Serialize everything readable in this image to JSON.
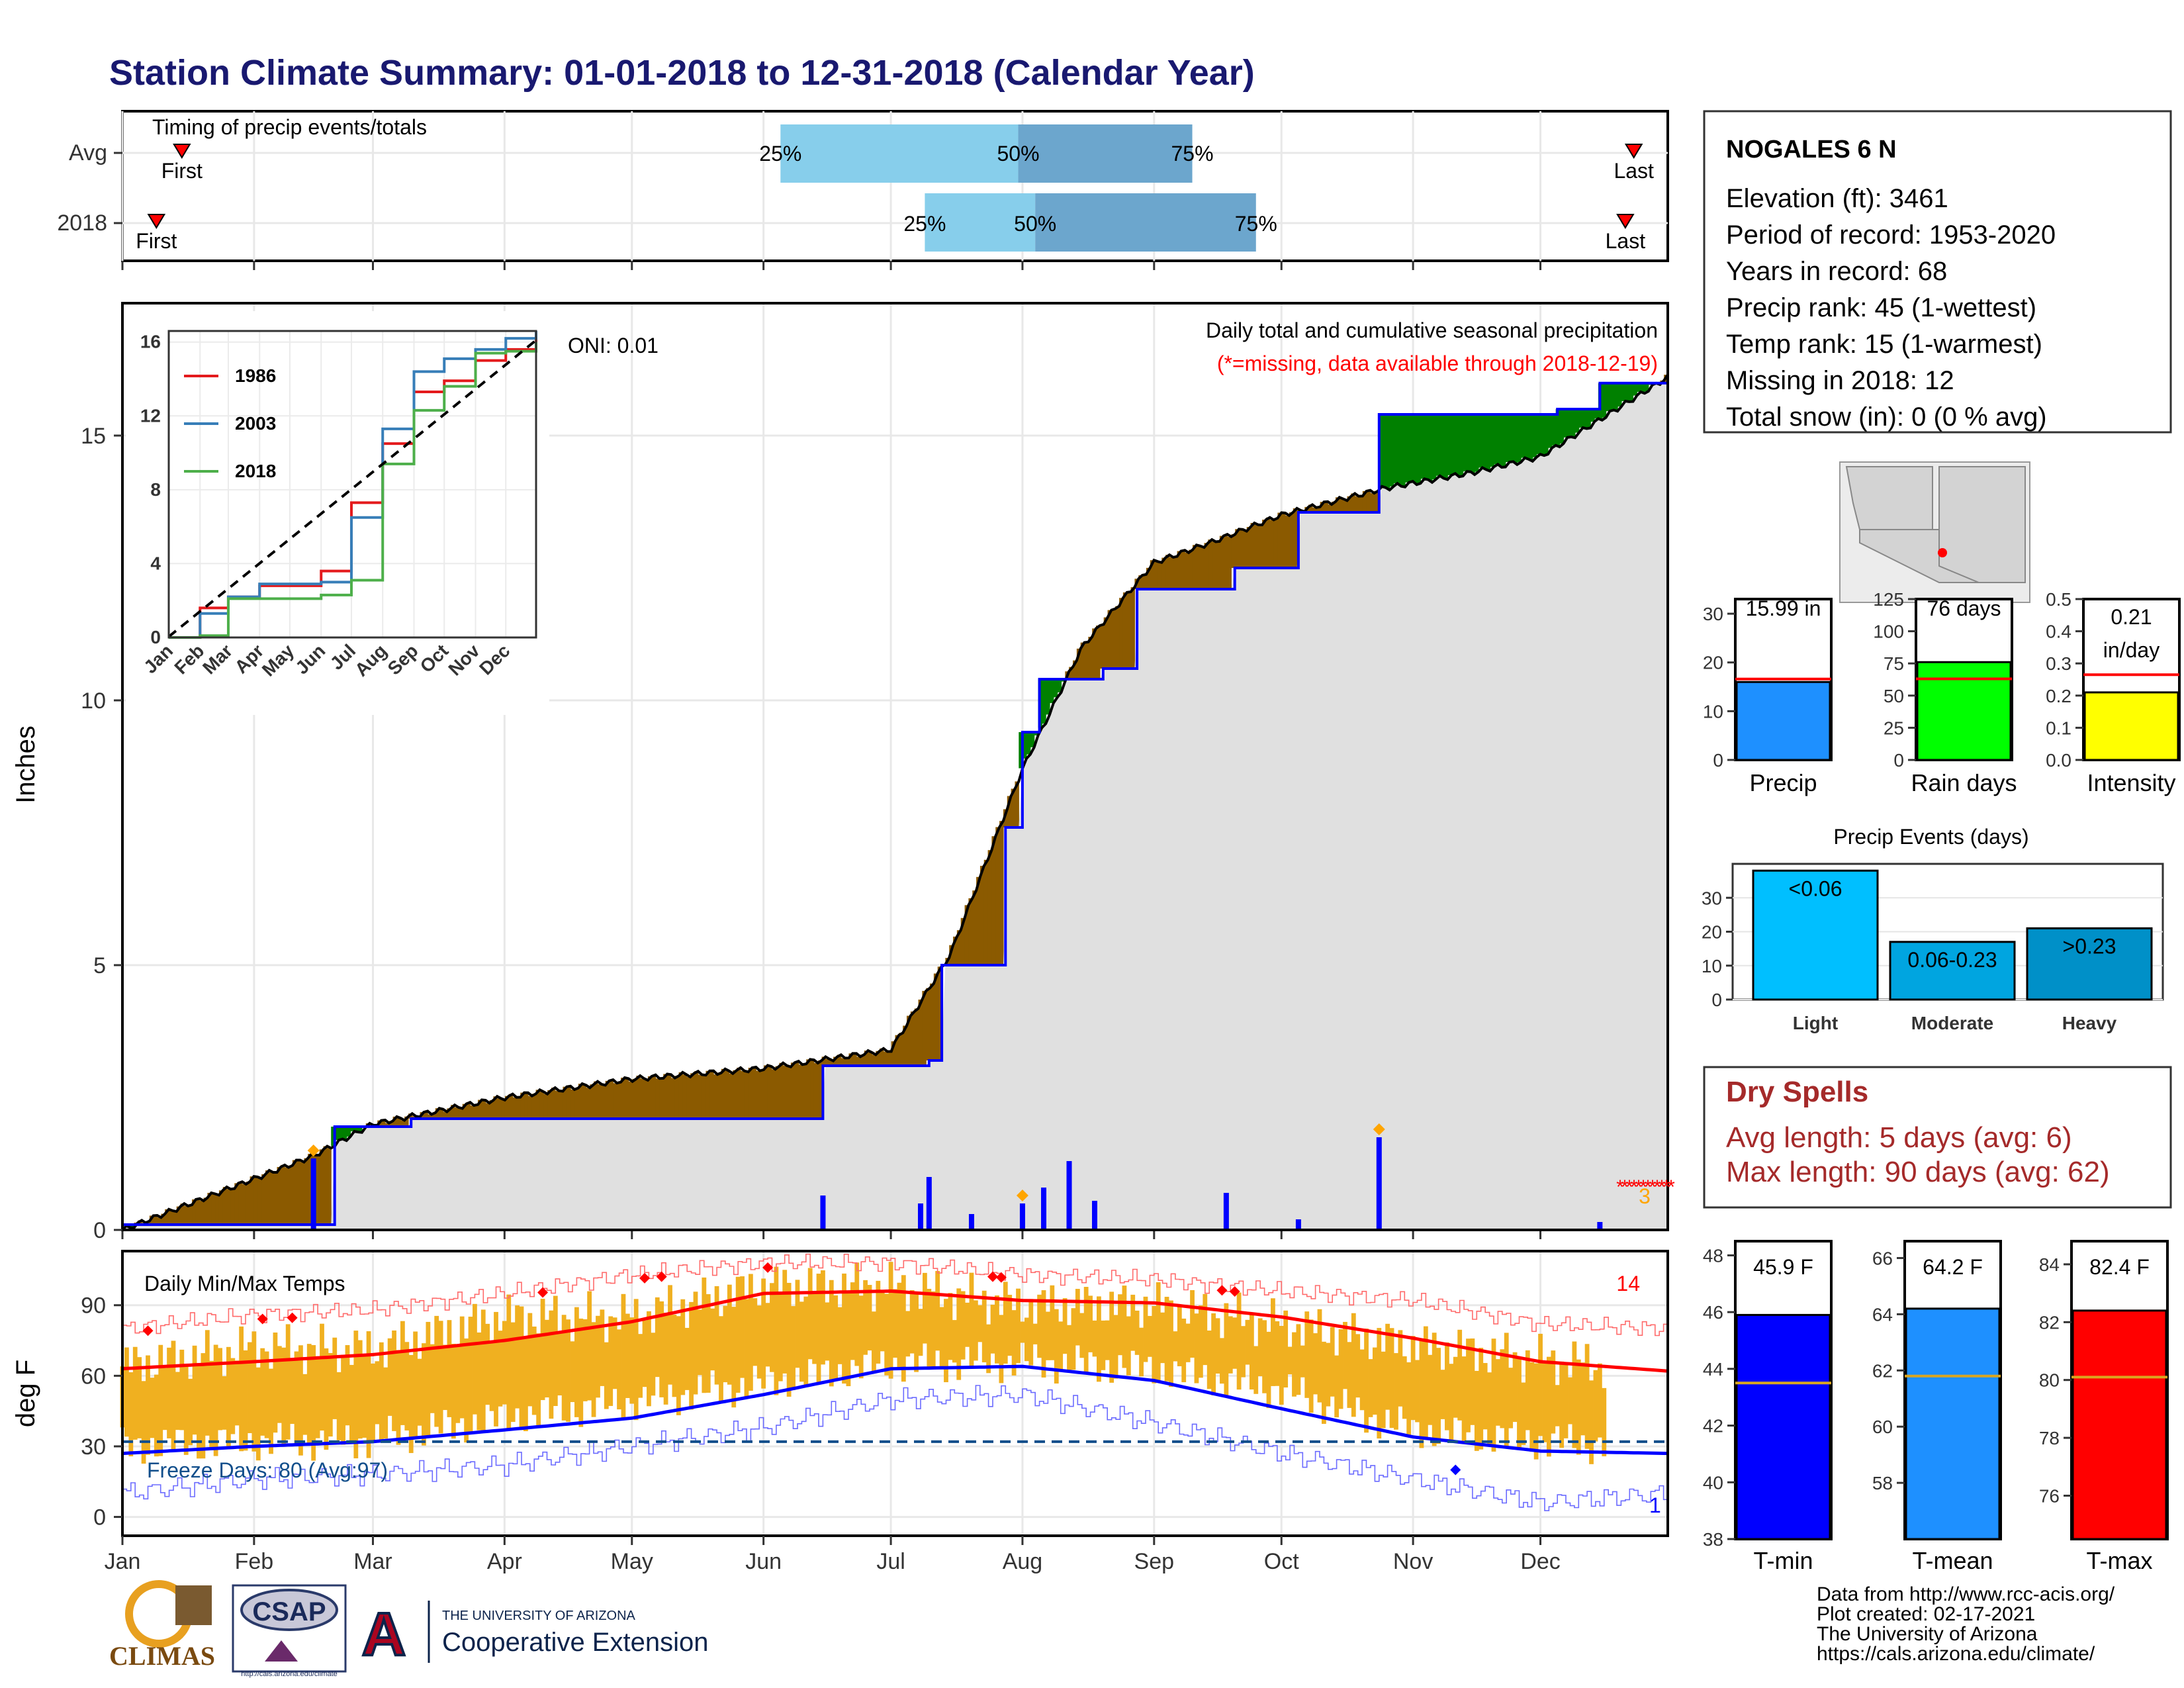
{
  "title": "Station Climate Summary: 01-01-2018 to 12-31-2018 (Calendar Year)",
  "colors": {
    "title": "#191970",
    "brown": "#8b5a00",
    "green": "#008000",
    "gray_fill": "#e0e0e0",
    "blue": "#0000ff",
    "red": "#ff0000",
    "orange": "#f0b020"
  },
  "station": {
    "name": "NOGALES 6 N",
    "lines": [
      "Elevation (ft): 3461",
      "Period of record: 1953-2020",
      "Years in record: 68",
      "Precip rank: 45 (1-wettest)",
      "Temp rank: 15 (1-warmest)",
      "Missing in 2018: 12",
      "Total snow (in): 0 (0 % avg)"
    ]
  },
  "timing": {
    "title": "Timing of precip events/totals",
    "rows": [
      "Avg",
      "2018"
    ],
    "first_label": "First",
    "last_label": "Last",
    "p25": "25%",
    "p50": "50%",
    "p75": "75%",
    "avg": {
      "first": "2018-01-15",
      "q25": "2018-06-05",
      "q50": "2018-07-31",
      "q75": "2018-09-10",
      "last": "2018-12-23"
    },
    "y2018": {
      "first": "2018-01-09",
      "q25": "2018-07-09",
      "q50": "2018-08-04",
      "q75": "2018-09-25",
      "last": "2018-12-21"
    }
  },
  "precip": {
    "ylabel": "Inches",
    "ticks": [
      "0",
      "5",
      "10",
      "15"
    ],
    "header1": "Daily total and cumulative seasonal precipitation",
    "header2": "(*=missing, data available through 2018-12-19)",
    "oni": "ONI: 0.01",
    "missing_count": "3"
  },
  "inset": {
    "ticks": [
      "0",
      "4",
      "8",
      "12",
      "16"
    ],
    "months": [
      "Jan",
      "Feb",
      "Mar",
      "Apr",
      "May",
      "Jun",
      "Jul",
      "Aug",
      "Sep",
      "Oct",
      "Nov",
      "Dec"
    ],
    "legend": [
      {
        "name": "1986",
        "color": "#e41a1c"
      },
      {
        "name": "2003",
        "color": "#377eb8"
      },
      {
        "name": "2018",
        "color": "#4daf4a"
      }
    ]
  },
  "temps": {
    "title": "Daily Min/Max Temps",
    "ylabel": "deg F",
    "ticks": [
      "0",
      "30",
      "60",
      "90"
    ],
    "freeze": "Freeze Days: 80 (Avg:97)",
    "record_high_count": "14",
    "record_low_count": "1"
  },
  "months": [
    "Jan",
    "Feb",
    "Mar",
    "Apr",
    "May",
    "Jun",
    "Jul",
    "Aug",
    "Sep",
    "Oct",
    "Nov",
    "Dec"
  ],
  "mini_bars": [
    {
      "label": "Precip",
      "value_text": "15.99 in",
      "value": 15.99,
      "avg": 16.6,
      "ticks": [
        "0",
        "10",
        "20",
        "30"
      ],
      "max": 33,
      "color": "#1e90ff"
    },
    {
      "label": "Rain days",
      "value_text": "76 days",
      "value": 76,
      "avg": 63,
      "ticks": [
        "0",
        "25",
        "50",
        "75",
        "100",
        "125"
      ],
      "max": 125,
      "color": "#00ff00"
    },
    {
      "label": "Intensity",
      "value_text": "0.21",
      "value_text2": "in/day",
      "value": 0.21,
      "avg": 0.265,
      "ticks": [
        "0.0",
        "0.1",
        "0.2",
        "0.3",
        "0.4",
        "0.5"
      ],
      "max": 0.5,
      "color": "#ffff00"
    }
  ],
  "events": {
    "title": "Precip Events (days)",
    "ticks": [
      "0",
      "10",
      "20",
      "30"
    ],
    "categories": [
      "Light",
      "Moderate",
      "Heavy"
    ],
    "labels": [
      "<0.06",
      "0.06-0.23",
      ">0.23"
    ],
    "values": [
      38,
      17,
      21
    ],
    "colors": [
      "#00bfff",
      "#00a5e0",
      "#0090c8"
    ]
  },
  "dry": {
    "title": "Dry Spells",
    "line1": "Avg length: 5 days (avg: 6)",
    "line2": "Max length: 90 days (avg: 62)"
  },
  "temp_bars": [
    {
      "label": "T-min",
      "value_text": "45.9 F",
      "value": 45.9,
      "avg": 43.5,
      "ymin": 38,
      "ymax": 48.5,
      "ticks": [
        "38",
        "40",
        "42",
        "44",
        "46",
        "48"
      ],
      "color": "#0000ff"
    },
    {
      "label": "T-mean",
      "value_text": "64.2 F",
      "value": 64.2,
      "avg": 61.8,
      "ymin": 56,
      "ymax": 66.6,
      "ticks": [
        "58",
        "60",
        "62",
        "64",
        "66"
      ],
      "color": "#1e90ff"
    },
    {
      "label": "T-max",
      "value_text": "82.4 F",
      "value": 82.4,
      "avg": 80.1,
      "ymin": 74.5,
      "ymax": 84.8,
      "ticks": [
        "76",
        "78",
        "80",
        "82",
        "84"
      ],
      "color": "#ff0000"
    }
  ],
  "credits": [
    "Data from http://www.rcc-acis.org/",
    "Plot created: 02-17-2021",
    "The University of Arizona",
    "https://cals.arizona.edu/climate/"
  ],
  "logos": {
    "climas": "CLIMAS",
    "csap": "CSAP",
    "csap_url": "http://cals.arizona.edu/climate",
    "ua_top": "THE UNIVERSITY OF ARIZONA",
    "ua_bottom": "Cooperative Extension",
    "ua_letter": "A"
  },
  "chart_data": [
    {
      "type": "area",
      "title": "Daily total and cumulative seasonal precipitation",
      "ylabel": "Inches",
      "ylim": [
        0,
        17.5
      ],
      "series": [
        {
          "name": "cumulative 2018",
          "x": [
            "2018-01-01",
            "2018-02-15",
            "2018-02-20",
            "2018-03-10",
            "2018-04-05",
            "2018-06-01",
            "2018-06-15",
            "2018-07-10",
            "2018-07-13",
            "2018-07-28",
            "2018-08-01",
            "2018-08-05",
            "2018-08-20",
            "2018-08-28",
            "2018-09-20",
            "2018-10-05",
            "2018-10-24",
            "2018-11-10",
            "2018-12-05",
            "2018-12-15",
            "2018-12-31"
          ],
          "values": [
            0.1,
            0.1,
            1.95,
            2.1,
            2.1,
            2.1,
            3.1,
            3.2,
            5.0,
            7.6,
            9.4,
            10.4,
            10.6,
            12.1,
            12.5,
            13.55,
            15.4,
            15.4,
            15.5,
            15.99,
            15.99
          ]
        },
        {
          "name": "average cumulative",
          "x": [
            "2018-01-01",
            "2018-02-15",
            "2018-03-01",
            "2018-04-01",
            "2018-05-01",
            "2018-06-01",
            "2018-07-01",
            "2018-07-15",
            "2018-08-01",
            "2018-08-15",
            "2018-09-01",
            "2018-09-15",
            "2018-10-01",
            "2018-10-25",
            "2018-11-15",
            "2018-12-01",
            "2018-12-31"
          ],
          "values": [
            0,
            1.4,
            2.0,
            2.5,
            2.85,
            3.05,
            3.4,
            5.2,
            8.7,
            11.0,
            12.6,
            13.0,
            13.5,
            14.0,
            14.3,
            14.6,
            16.1
          ]
        }
      ],
      "daily_bars": {
        "x": [
          "2018-02-15",
          "2018-06-15",
          "2018-07-08",
          "2018-07-10",
          "2018-07-20",
          "2018-08-01",
          "2018-08-06",
          "2018-08-12",
          "2018-08-18",
          "2018-09-18",
          "2018-10-05",
          "2018-10-24",
          "2018-12-15"
        ],
        "values": [
          1.35,
          0.65,
          0.5,
          1.0,
          0.3,
          0.5,
          0.8,
          1.3,
          0.55,
          0.7,
          0.2,
          1.75,
          0.15
        ]
      }
    },
    {
      "type": "line",
      "title": "Daily Min/Max Temps",
      "ylabel": "deg F",
      "ylim": [
        -8,
        113
      ],
      "x": [
        "2018-01-01",
        "2018-02-01",
        "2018-03-01",
        "2018-04-01",
        "2018-05-01",
        "2018-06-01",
        "2018-07-01",
        "2018-08-01",
        "2018-09-01",
        "2018-10-01",
        "2018-11-01",
        "2018-12-01",
        "2018-12-31"
      ],
      "series": [
        {
          "name": "normal max",
          "values": [
            63,
            66,
            69,
            75,
            83,
            95,
            96,
            92,
            91,
            85,
            76,
            66,
            62
          ]
        },
        {
          "name": "normal min",
          "values": [
            27,
            30,
            32,
            37,
            42,
            52,
            63,
            64,
            58,
            46,
            34,
            28,
            27
          ]
        },
        {
          "name": "record max",
          "values": [
            80,
            86,
            88,
            95,
            103,
            108,
            108,
            103,
            101,
            96,
            92,
            82,
            80
          ]
        },
        {
          "name": "record min",
          "values": [
            10,
            16,
            18,
            22,
            30,
            38,
            50,
            52,
            40,
            27,
            16,
            6,
            10
          ]
        },
        {
          "name": "observed max 2018",
          "values": [
            64,
            72,
            71,
            85,
            85,
            98,
            98,
            90,
            90,
            82,
            73,
            67,
            62
          ]
        },
        {
          "name": "observed min 2018",
          "values": [
            30,
            32,
            33,
            42,
            49,
            57,
            65,
            66,
            63,
            54,
            37,
            32,
            30
          ]
        }
      ]
    },
    {
      "type": "line",
      "title": "",
      "x": [
        1,
        32,
        60,
        91,
        121,
        152,
        182,
        213,
        244,
        274,
        305,
        335,
        365
      ],
      "ylim": [
        0,
        16.6
      ],
      "series": [
        {
          "name": "1986",
          "values": [
            0,
            1.6,
            2.2,
            2.8,
            2.8,
            3.6,
            7.3,
            10.5,
            13.3,
            13.9,
            15.0,
            15.6,
            16.5
          ]
        },
        {
          "name": "2003",
          "values": [
            0,
            1.3,
            2.2,
            2.9,
            2.9,
            3.0,
            6.5,
            11.3,
            14.4,
            15.1,
            15.6,
            16.2,
            16.6
          ]
        },
        {
          "name": "2018",
          "values": [
            0,
            0.1,
            2.1,
            2.1,
            2.1,
            2.3,
            3.1,
            9.4,
            12.3,
            13.6,
            15.4,
            15.5,
            16.0
          ]
        }
      ]
    },
    {
      "type": "bar",
      "title": "Precip Events (days)",
      "categories": [
        "Light",
        "Moderate",
        "Heavy"
      ],
      "values": [
        38,
        17,
        21
      ],
      "ylim": [
        0,
        40
      ]
    },
    {
      "type": "bar",
      "categories": [
        "Precip",
        "Rain days",
        "Intensity",
        "T-min",
        "T-mean",
        "T-max"
      ],
      "values": [
        15.99,
        76,
        0.21,
        45.9,
        64.2,
        82.4
      ]
    }
  ]
}
